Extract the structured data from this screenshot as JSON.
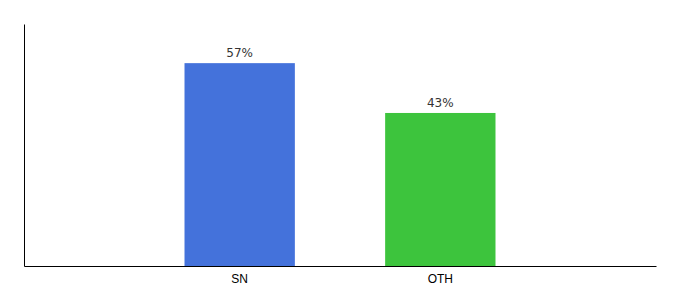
{
  "chart_data": {
    "type": "bar",
    "categories": [
      "SN",
      "OTH"
    ],
    "values": [
      57,
      43
    ],
    "value_labels": [
      "57%",
      "43%"
    ],
    "colors": [
      "#4472db",
      "#3dc43d"
    ],
    "ylim": [
      0,
      68
    ],
    "data_labels": true,
    "tick_labels": "x"
  }
}
